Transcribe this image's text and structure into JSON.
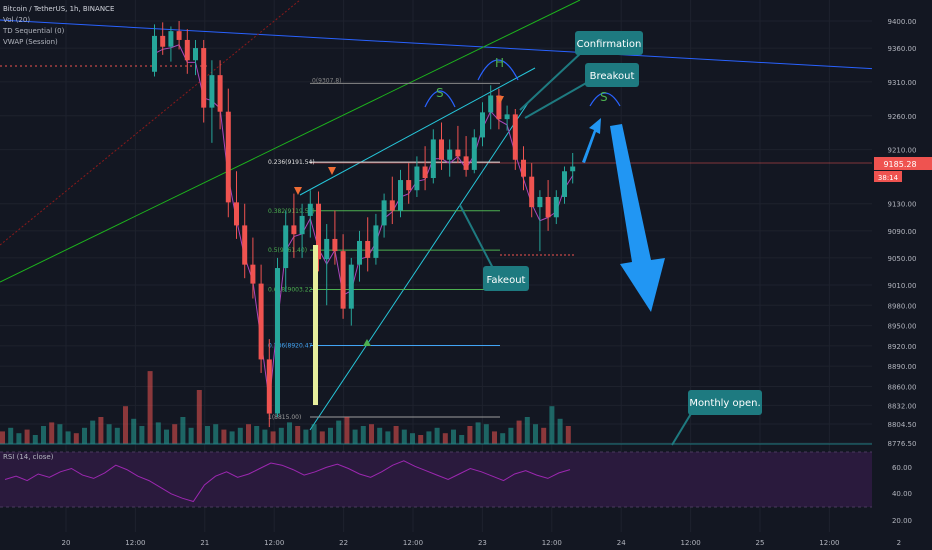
{
  "header": {
    "symbol_line": "Bitcoin / TetherUS, 1h, BINANCE",
    "indicators": [
      "Vol (20)",
      "TD Sequential (0)",
      "VWAP (Session)"
    ]
  },
  "chart_data": {
    "type": "candlestick",
    "price_axis": {
      "ticks": [
        "9400.00",
        "9360.00",
        "9310.00",
        "9260.00",
        "9210.00",
        "9130.00",
        "9090.00",
        "9050.00",
        "9010.00",
        "8980.00",
        "8950.00",
        "8920.00",
        "8890.00",
        "8860.00",
        "8832.00",
        "8804.50",
        "8776.50"
      ],
      "last_price": "9185.28",
      "countdown": "38:14",
      "ylim": [
        8776.5,
        9400
      ]
    },
    "time_axis": {
      "ticks": [
        "20",
        "12:00",
        "21",
        "12:00",
        "22",
        "12:00",
        "23",
        "12:00",
        "24",
        "12:00",
        "25",
        "12:00",
        "2"
      ]
    },
    "fibonacci": [
      {
        "label": "0.236(9191.54)",
        "price": 9191.54
      },
      {
        "label": "0.382(9119.58)",
        "price": 9119.58
      },
      {
        "label": "0.5(9061.40)",
        "price": 9061.4
      },
      {
        "label": "0.618(9003.22)",
        "price": 9003.22
      },
      {
        "label": "0.786(8920.47)",
        "price": 8920.47
      },
      {
        "label": "1(8815.00)",
        "price": 8815.0
      }
    ],
    "fib_top_label": "0(9307.8)",
    "pattern_labels": {
      "left_shoulder": "S",
      "head": "H",
      "right_shoulder": "S"
    },
    "callouts": [
      "Confirmation",
      "Breakout",
      "Fakeout",
      "Monthly open."
    ],
    "candles": [
      [
        9325,
        9395,
        9318,
        9378
      ],
      [
        9378,
        9398,
        9350,
        9362
      ],
      [
        9362,
        9392,
        9340,
        9385
      ],
      [
        9385,
        9400,
        9358,
        9372
      ],
      [
        9372,
        9388,
        9322,
        9342
      ],
      [
        9342,
        9372,
        9320,
        9360
      ],
      [
        9360,
        9372,
        9250,
        9272
      ],
      [
        9272,
        9342,
        9220,
        9320
      ],
      [
        9320,
        9342,
        9240,
        9266
      ],
      [
        9266,
        9300,
        9110,
        9132
      ],
      [
        9132,
        9178,
        9078,
        9098
      ],
      [
        9098,
        9130,
        9020,
        9040
      ],
      [
        9040,
        9080,
        8990,
        9012
      ],
      [
        9012,
        9040,
        8880,
        8900
      ],
      [
        8900,
        8930,
        8800,
        8820
      ],
      [
        8820,
        9050,
        8815,
        9035
      ],
      [
        9035,
        9120,
        9000,
        9098
      ],
      [
        9098,
        9145,
        9050,
        9085
      ],
      [
        9085,
        9130,
        9050,
        9112
      ],
      [
        9112,
        9150,
        9080,
        9130
      ],
      [
        9130,
        9148,
        9030,
        9048
      ],
      [
        9048,
        9100,
        8980,
        9078
      ],
      [
        9078,
        9120,
        9040,
        9060
      ],
      [
        9060,
        9085,
        8960,
        8975
      ],
      [
        8975,
        9050,
        8950,
        9040
      ],
      [
        9040,
        9090,
        9015,
        9075
      ],
      [
        9075,
        9110,
        9030,
        9050
      ],
      [
        9050,
        9115,
        9040,
        9098
      ],
      [
        9098,
        9145,
        9080,
        9135
      ],
      [
        9135,
        9170,
        9100,
        9120
      ],
      [
        9120,
        9180,
        9110,
        9165
      ],
      [
        9165,
        9190,
        9130,
        9150
      ],
      [
        9150,
        9200,
        9140,
        9185
      ],
      [
        9185,
        9215,
        9150,
        9168
      ],
      [
        9168,
        9240,
        9160,
        9225
      ],
      [
        9225,
        9250,
        9180,
        9195
      ],
      [
        9195,
        9225,
        9170,
        9210
      ],
      [
        9210,
        9245,
        9190,
        9200
      ],
      [
        9200,
        9230,
        9170,
        9180
      ],
      [
        9180,
        9240,
        9175,
        9228
      ],
      [
        9228,
        9280,
        9215,
        9265
      ],
      [
        9265,
        9305,
        9240,
        9290
      ],
      [
        9290,
        9300,
        9240,
        9255
      ],
      [
        9255,
        9275,
        9238,
        9262
      ],
      [
        9262,
        9270,
        9180,
        9195
      ],
      [
        9195,
        9215,
        9150,
        9170
      ],
      [
        9170,
        9190,
        9110,
        9125
      ],
      [
        9125,
        9150,
        9060,
        9140
      ],
      [
        9140,
        9165,
        9090,
        9110
      ],
      [
        9110,
        9150,
        9100,
        9140
      ],
      [
        9140,
        9185,
        9130,
        9178
      ],
      [
        9178,
        9205,
        9160,
        9185
      ]
    ],
    "volume": [
      14,
      18,
      12,
      16,
      10,
      20,
      24,
      22,
      14,
      12,
      18,
      26,
      30,
      22,
      18,
      42,
      28,
      20,
      18,
      24,
      16,
      22,
      30,
      18,
      60,
      20,
      22,
      16,
      14,
      18,
      22,
      20,
      16,
      14,
      18,
      24,
      20,
      16,
      22,
      14,
      18,
      26,
      30,
      16,
      20,
      22,
      18,
      14,
      20,
      16,
      12,
      10
    ],
    "rsi": {
      "label": "RSI (14, close)",
      "ticks": [
        "60.00",
        "40.00",
        "20.00"
      ]
    }
  },
  "colors": {
    "up": "#26a69a",
    "down": "#ef5350",
    "callout": "#1e7a80",
    "arrow": "#2196f3"
  }
}
